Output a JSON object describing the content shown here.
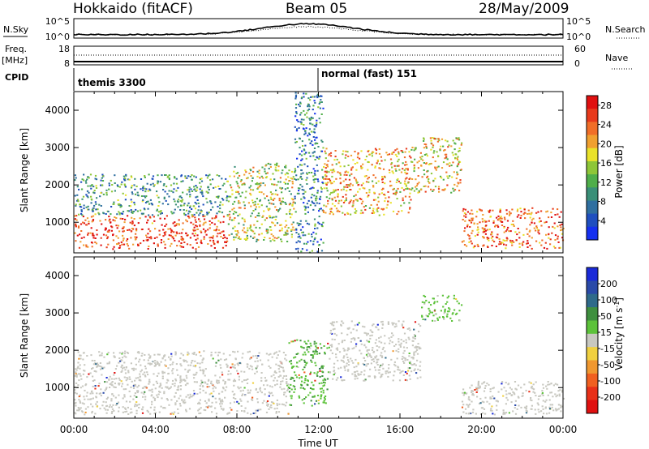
{
  "header": {
    "station": "Hokkaido (fitACF)",
    "beam": "Beam 05",
    "date": "28/May/2009"
  },
  "left_labels": {
    "nsky": "N.Sky",
    "nsky_ticks": [
      "10^5",
      "10^0"
    ],
    "freq": "Freq.",
    "freq_unit": "[MHz]",
    "freq_ticks": [
      "18",
      "8"
    ],
    "cpid": "CPID"
  },
  "right_labels": {
    "nsearch": "N.Search",
    "nsearch_ticks": [
      "10^5",
      "10^0"
    ],
    "nave": "Nave",
    "nave_ticks": [
      "60",
      "0"
    ]
  },
  "cpid_segments": [
    {
      "name": "themis 3300",
      "start_hour": 0
    },
    {
      "name": "normal (fast) 151",
      "start_hour": 12.2
    }
  ],
  "colors": {
    "power": [
      "#1530f0",
      "#1f4fbf",
      "#2f6fa0",
      "#3a8f78",
      "#4fae4a",
      "#8ec638",
      "#e9e22a",
      "#f0a030",
      "#f06e28",
      "#e83a1c",
      "#e01010"
    ],
    "velocity": [
      "#1a2ad8",
      "#2a4aa8",
      "#2f6a8a",
      "#3f8f3f",
      "#5cc23a",
      "#c8c8c0",
      "#f0d040",
      "#f09830",
      "#f06020",
      "#e83018",
      "#e01010"
    ]
  },
  "chart_data": [
    {
      "type": "heatmap",
      "name": "power",
      "xlabel": "Time UT",
      "ylabel": "Slant Range [km]",
      "xlim": [
        0,
        24
      ],
      "ylim": [
        180,
        4500
      ],
      "x_ticks": [
        "00:00",
        "04:00",
        "08:00",
        "12:00",
        "16:00",
        "20:00",
        "00:00"
      ],
      "y_ticks": [
        "1000",
        "2000",
        "3000",
        "4000"
      ],
      "colorbar_label": "Power [dB]",
      "colorbar_ticks": [
        "4",
        "8",
        "12",
        "16",
        "20",
        "24",
        "28"
      ],
      "colorbar_range": [
        0,
        30
      ],
      "regions": [
        {
          "t0": 0,
          "t1": 7.5,
          "r0": 300,
          "r1": 1200,
          "value": 26
        },
        {
          "t0": 0,
          "t1": 7.5,
          "r0": 1200,
          "r1": 2300,
          "value": 10
        },
        {
          "t0": 7.5,
          "t1": 10.8,
          "r0": 500,
          "r1": 2600,
          "value": 16
        },
        {
          "t0": 10.8,
          "t1": 12.2,
          "r0": 200,
          "r1": 4500,
          "value": 8
        },
        {
          "t0": 12.2,
          "t1": 16.5,
          "r0": 1200,
          "r1": 3000,
          "value": 20
        },
        {
          "t0": 16.5,
          "t1": 19,
          "r0": 1800,
          "r1": 3300,
          "value": 18
        },
        {
          "t0": 19,
          "t1": 24,
          "r0": 300,
          "r1": 1400,
          "value": 24
        }
      ]
    },
    {
      "type": "heatmap",
      "name": "velocity",
      "xlabel": "Time UT",
      "ylabel": "Slant Range [km]",
      "xlim": [
        0,
        24
      ],
      "ylim": [
        180,
        4500
      ],
      "x_ticks": [
        "00:00",
        "04:00",
        "08:00",
        "12:00",
        "16:00",
        "20:00",
        "00:00"
      ],
      "y_ticks": [
        "1000",
        "2000",
        "3000",
        "4000"
      ],
      "colorbar_label": "Velocity [m s^-1]",
      "colorbar_ticks": [
        "200",
        "100",
        "50",
        "15",
        "-15",
        "-50",
        "-100",
        "-200"
      ],
      "colorbar_range": [
        -250,
        250
      ],
      "regions": [
        {
          "t0": 0,
          "t1": 10.5,
          "r0": 300,
          "r1": 2000,
          "value": 0
        },
        {
          "t0": 10.5,
          "t1": 12.5,
          "r0": 500,
          "r1": 2300,
          "value": 60
        },
        {
          "t0": 12.5,
          "t1": 17,
          "r0": 1200,
          "r1": 2800,
          "value": 0
        },
        {
          "t0": 17,
          "t1": 19,
          "r0": 2800,
          "r1": 3500,
          "value": 40
        },
        {
          "t0": 19,
          "t1": 24,
          "r0": 300,
          "r1": 1200,
          "value": 0
        }
      ]
    }
  ]
}
